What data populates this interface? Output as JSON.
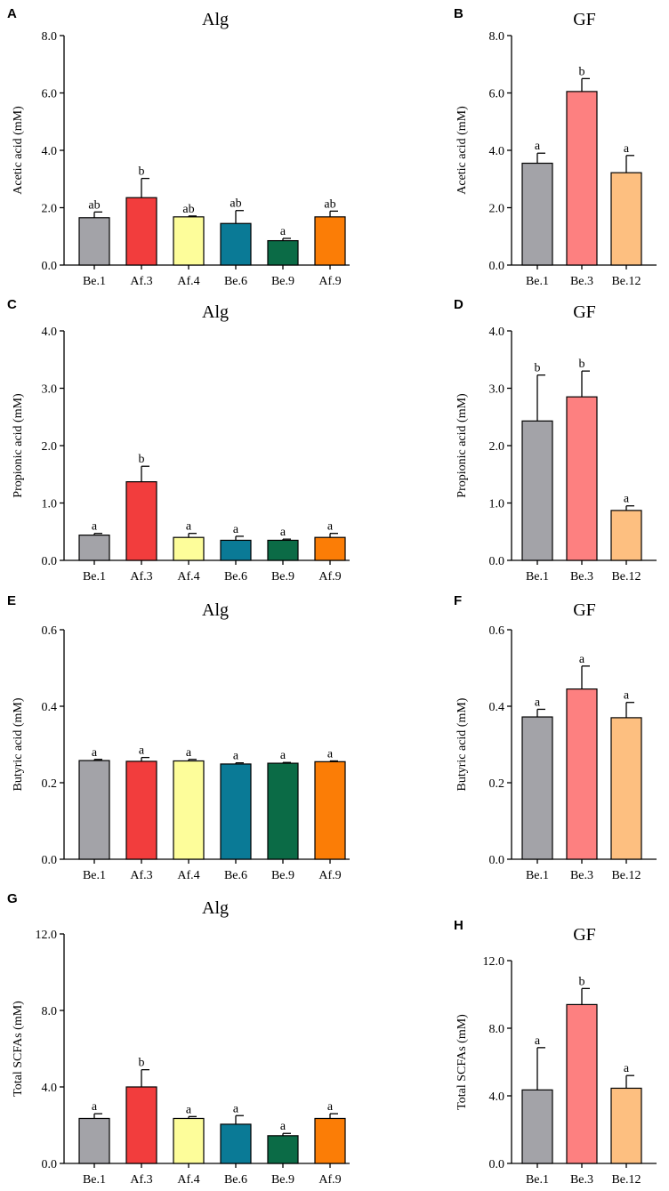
{
  "figure": {
    "description_free": true
  },
  "chart_data": [
    {
      "panel": "A",
      "type": "bar",
      "title": "Alg",
      "xlabel": "",
      "ylabel": "Acetic acid (mM)",
      "categories": [
        "Be.1",
        "Af.3",
        "Af.4",
        "Be.6",
        "Be.9",
        "Af.9"
      ],
      "values": [
        1.65,
        2.35,
        1.68,
        1.45,
        0.85,
        1.68
      ],
      "errors": [
        0.2,
        0.67,
        0.03,
        0.45,
        0.08,
        0.2
      ],
      "letters": [
        "ab",
        "b",
        "ab",
        "ab",
        "a",
        "ab"
      ],
      "colors": [
        "#a3a3a8",
        "#f23d3d",
        "#fdfd9a",
        "#0a7a96",
        "#0b6b46",
        "#fb7d06"
      ],
      "ylim": [
        0,
        8
      ],
      "yticks": [
        0,
        2,
        4,
        6,
        8
      ],
      "ytick_labels": [
        "0.0",
        "2.0",
        "4.0",
        "6.0",
        "8.0"
      ]
    },
    {
      "panel": "B",
      "type": "bar",
      "title": "GF",
      "xlabel": "",
      "ylabel": "Acetic acid (mM)",
      "categories": [
        "Be.1",
        "Be.3",
        "Be.12"
      ],
      "values": [
        3.55,
        6.05,
        3.22
      ],
      "errors": [
        0.35,
        0.45,
        0.6
      ],
      "letters": [
        "a",
        "b",
        "a"
      ],
      "colors": [
        "#a3a3a8",
        "#fd8080",
        "#fdbf80"
      ],
      "ylim": [
        0,
        8
      ],
      "yticks": [
        0,
        2,
        4,
        6,
        8
      ],
      "ytick_labels": [
        "0.0",
        "2.0",
        "4.0",
        "6.0",
        "8.0"
      ]
    },
    {
      "panel": "C",
      "type": "bar",
      "title": "Alg",
      "xlabel": "",
      "ylabel": "Propionic acid (mM)",
      "categories": [
        "Be.1",
        "Af.3",
        "Af.4",
        "Be.6",
        "Be.9",
        "Af.9"
      ],
      "values": [
        0.44,
        1.37,
        0.4,
        0.35,
        0.35,
        0.4
      ],
      "errors": [
        0.03,
        0.27,
        0.07,
        0.07,
        0.02,
        0.07
      ],
      "letters": [
        "a",
        "b",
        "a",
        "a",
        "a",
        "a"
      ],
      "colors": [
        "#a3a3a8",
        "#f23d3d",
        "#fdfd9a",
        "#0a7a96",
        "#0b6b46",
        "#fb7d06"
      ],
      "ylim": [
        0,
        4
      ],
      "yticks": [
        0,
        1,
        2,
        3,
        4
      ],
      "ytick_labels": [
        "0.0",
        "1.0",
        "2.0",
        "3.0",
        "4.0"
      ]
    },
    {
      "panel": "D",
      "type": "bar",
      "title": "GF",
      "xlabel": "",
      "ylabel": "Propionic acid (mM)",
      "categories": [
        "Be.1",
        "Be.3",
        "Be.12"
      ],
      "values": [
        2.43,
        2.85,
        0.87
      ],
      "errors": [
        0.8,
        0.45,
        0.08
      ],
      "letters": [
        "b",
        "b",
        "a"
      ],
      "colors": [
        "#a3a3a8",
        "#fd8080",
        "#fdbf80"
      ],
      "ylim": [
        0,
        4
      ],
      "yticks": [
        0,
        1,
        2,
        3,
        4
      ],
      "ytick_labels": [
        "0.0",
        "1.0",
        "2.0",
        "3.0",
        "4.0"
      ]
    },
    {
      "panel": "E",
      "type": "bar",
      "title": "Alg",
      "xlabel": "",
      "ylabel": "Butyric acid (mM)",
      "categories": [
        "Be.1",
        "Af.3",
        "Af.4",
        "Be.6",
        "Be.9",
        "Af.9"
      ],
      "values": [
        0.258,
        0.256,
        0.257,
        0.249,
        0.251,
        0.255
      ],
      "errors": [
        0.003,
        0.01,
        0.004,
        0.003,
        0.002,
        0.002
      ],
      "letters": [
        "a",
        "a",
        "a",
        "a",
        "a",
        "a"
      ],
      "colors": [
        "#a3a3a8",
        "#f23d3d",
        "#fdfd9a",
        "#0a7a96",
        "#0b6b46",
        "#fb7d06"
      ],
      "ylim": [
        0,
        0.6
      ],
      "yticks": [
        0,
        0.2,
        0.4,
        0.6
      ],
      "ytick_labels": [
        "0.0",
        "0.2",
        "0.4",
        "0.6"
      ]
    },
    {
      "panel": "F",
      "type": "bar",
      "title": "GF",
      "xlabel": "",
      "ylabel": "Butyric acid (mM)",
      "categories": [
        "Be.1",
        "Be.3",
        "Be.12"
      ],
      "values": [
        0.372,
        0.445,
        0.37
      ],
      "errors": [
        0.02,
        0.06,
        0.04
      ],
      "letters": [
        "a",
        "a",
        "a"
      ],
      "colors": [
        "#a3a3a8",
        "#fd8080",
        "#fdbf80"
      ],
      "ylim": [
        0,
        0.6
      ],
      "yticks": [
        0,
        0.2,
        0.4,
        0.6
      ],
      "ytick_labels": [
        "0.0",
        "0.2",
        "0.4",
        "0.6"
      ]
    },
    {
      "panel": "G",
      "type": "bar",
      "title": "Alg",
      "xlabel": "",
      "ylabel": "Total SCFAs (mM)",
      "categories": [
        "Be.1",
        "Af.3",
        "Af.4",
        "Be.6",
        "Be.9",
        "Af.9"
      ],
      "values": [
        2.35,
        4.0,
        2.35,
        2.05,
        1.45,
        2.35
      ],
      "errors": [
        0.25,
        0.9,
        0.1,
        0.45,
        0.12,
        0.25
      ],
      "letters": [
        "a",
        "b",
        "a",
        "a",
        "a",
        "a"
      ],
      "colors": [
        "#a3a3a8",
        "#f23d3d",
        "#fdfd9a",
        "#0a7a96",
        "#0b6b46",
        "#fb7d06"
      ],
      "ylim": [
        0,
        12
      ],
      "yticks": [
        0,
        4,
        8,
        12
      ],
      "ytick_labels": [
        "0.0",
        "4.0",
        "8.0",
        "12.0"
      ]
    },
    {
      "panel": "H",
      "type": "bar",
      "title": "GF",
      "xlabel": "",
      "ylabel": "Total SCFAs (mM)",
      "categories": [
        "Be.1",
        "Be.3",
        "Be.12"
      ],
      "values": [
        4.35,
        9.4,
        4.45
      ],
      "errors": [
        2.5,
        0.95,
        0.75
      ],
      "letters": [
        "a",
        "b",
        "a"
      ],
      "colors": [
        "#a3a3a8",
        "#fd8080",
        "#fdbf80"
      ],
      "ylim": [
        0,
        12
      ],
      "yticks": [
        0,
        4,
        8,
        12
      ],
      "ytick_labels": [
        "0.0",
        "4.0",
        "8.0",
        "12.0"
      ]
    }
  ]
}
